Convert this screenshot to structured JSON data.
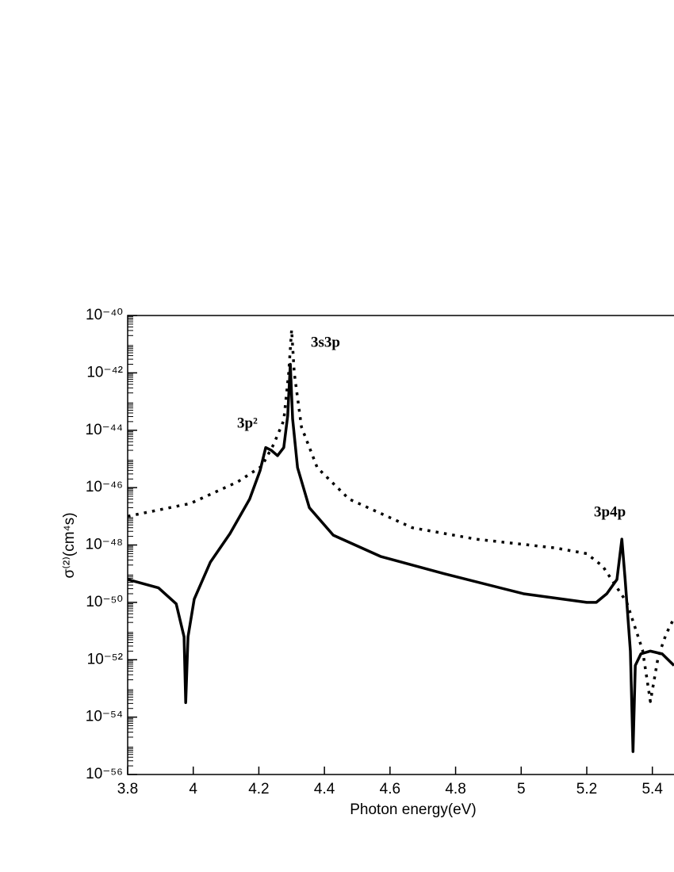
{
  "chart_data": {
    "type": "line",
    "xlabel": "Photon energy(eV)",
    "ylabel": "σ⁽²⁾(cm⁴s)",
    "annotations": [
      "3s3p",
      "3p²",
      "3p4p"
    ],
    "log_y": true,
    "xlim": [
      3.8,
      5.466
    ],
    "xticks": [
      3.8,
      4,
      4.2,
      4.4,
      4.6,
      4.8,
      5,
      5.2,
      5.4
    ],
    "ylim": [
      1e-56,
      1e-40
    ],
    "yticks": [
      {
        "value": 1e-56,
        "label": "10⁻⁵⁶"
      },
      {
        "value": 1e-54,
        "label": "10⁻⁵⁴"
      },
      {
        "value": 1e-52,
        "label": "10⁻⁵²"
      },
      {
        "value": 1e-50,
        "label": "10⁻⁵⁰"
      },
      {
        "value": 1e-48,
        "label": "10⁻⁴⁸"
      },
      {
        "value": 1e-46,
        "label": "10⁻⁴⁶"
      },
      {
        "value": 1e-44,
        "label": "10⁻⁴⁴"
      },
      {
        "value": 1e-42,
        "label": "10⁻⁴²"
      },
      {
        "value": 1e-40,
        "label": "10⁻⁴⁰"
      }
    ],
    "series": [
      {
        "color": "#000000",
        "style": "solid",
        "x": [
          3.8,
          3.894,
          3.948,
          3.972,
          3.977,
          3.984,
          4.003,
          4.052,
          4.112,
          4.172,
          4.204,
          4.221,
          4.238,
          4.257,
          4.276,
          4.288,
          4.296,
          4.303,
          4.318,
          4.354,
          4.427,
          4.571,
          4.765,
          5.007,
          5.2,
          5.229,
          5.261,
          5.292,
          5.307,
          5.317,
          5.333,
          5.341,
          5.348,
          5.365,
          5.394,
          5.43,
          5.466
        ],
        "values": [
          6.3e-50,
          3.2e-50,
          8.9e-51,
          6.3e-52,
          3.2e-54,
          6.3e-52,
          1.3e-50,
          2.5e-49,
          2.5e-48,
          4e-47,
          4e-46,
          2.5e-45,
          2e-45,
          1.3e-45,
          2.5e-45,
          3.2e-44,
          2e-42,
          2.5e-44,
          5e-46,
          2e-47,
          2.2e-48,
          4e-49,
          1e-49,
          2e-50,
          1e-50,
          1e-50,
          2e-50,
          6.3e-50,
          1.6e-48,
          6.3e-50,
          2e-52,
          6.3e-56,
          6.3e-53,
          1.6e-52,
          2e-52,
          1.6e-52,
          6.3e-53
        ]
      },
      {
        "color": "#000000",
        "style": "dotted",
        "x": [
          3.8,
          3.991,
          4.136,
          4.209,
          4.245,
          4.276,
          4.291,
          4.3,
          4.308,
          4.33,
          4.378,
          4.475,
          4.668,
          4.862,
          5.104,
          5.2,
          5.249,
          5.322,
          5.37,
          5.394,
          5.418,
          5.442,
          5.466
        ],
        "values": [
          1e-47,
          2.8e-47,
          1.6e-46,
          5.6e-46,
          3.2e-45,
          2.2e-44,
          1e-42,
          3.2e-41,
          1e-42,
          1.3e-44,
          5e-46,
          4e-47,
          4e-48,
          1.6e-48,
          7.9e-49,
          5e-49,
          1.8e-49,
          1e-50,
          2.2e-52,
          3.5e-54,
          1.3e-52,
          7.9e-52,
          2.8e-51
        ]
      }
    ]
  }
}
